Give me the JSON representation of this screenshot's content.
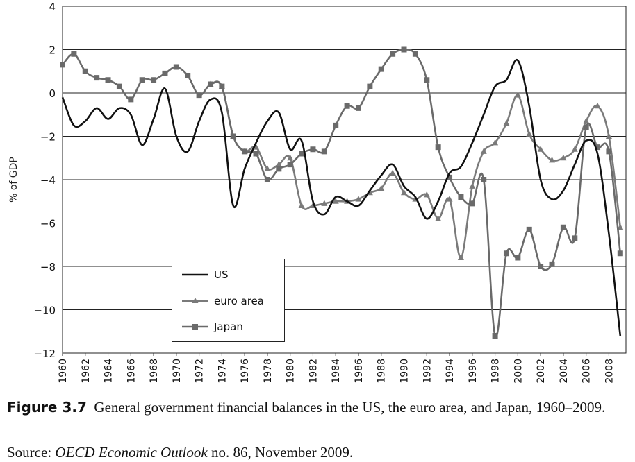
{
  "caption": {
    "figure_label": "Figure 3.7",
    "title": "General government financial balances in the US, the euro area, and Japan, 1960–2009.",
    "source_prefix": "Source: ",
    "source_publication": "OECD Economic Outlook",
    "source_suffix": " no. 86, November 2009."
  },
  "chart_data": {
    "type": "line",
    "ylabel": "% of GDP",
    "xlabel": "",
    "xlim": [
      1960,
      2009.5
    ],
    "ylim": [
      -12,
      4
    ],
    "x_ticks": [
      1960,
      1962,
      1964,
      1966,
      1968,
      1970,
      1972,
      1974,
      1976,
      1978,
      1980,
      1982,
      1984,
      1986,
      1988,
      1990,
      1992,
      1994,
      1996,
      1998,
      2000,
      2002,
      2004,
      2006,
      2008
    ],
    "y_ticks": [
      4,
      2,
      0,
      -2,
      -4,
      -6,
      -8,
      -10,
      -12
    ],
    "y_tick_labels": [
      "4",
      "2",
      "0",
      "−2",
      "−4",
      "−6",
      "−8",
      "−10",
      "−12"
    ],
    "grid": "horizontal",
    "legend_position": "bottom-center",
    "x": [
      1960,
      1961,
      1962,
      1963,
      1964,
      1965,
      1966,
      1967,
      1968,
      1969,
      1970,
      1971,
      1972,
      1973,
      1974,
      1975,
      1976,
      1977,
      1978,
      1979,
      1980,
      1981,
      1982,
      1983,
      1984,
      1985,
      1986,
      1987,
      1988,
      1989,
      1990,
      1991,
      1992,
      1993,
      1994,
      1995,
      1996,
      1997,
      1998,
      1999,
      2000,
      2001,
      2002,
      2003,
      2004,
      2005,
      2006,
      2007,
      2008,
      2009
    ],
    "series": [
      {
        "name": "US",
        "color": "#111111",
        "marker": "none",
        "values": [
          -0.2,
          -1.5,
          -1.3,
          -0.7,
          -1.2,
          -0.7,
          -1.0,
          -2.4,
          -1.2,
          0.2,
          -2.0,
          -2.7,
          -1.3,
          -0.3,
          -0.9,
          -5.2,
          -3.5,
          -2.3,
          -1.3,
          -0.9,
          -2.6,
          -2.2,
          -5.0,
          -5.6,
          -4.8,
          -5.0,
          -5.2,
          -4.5,
          -3.8,
          -3.3,
          -4.3,
          -4.8,
          -5.8,
          -5.0,
          -3.7,
          -3.4,
          -2.3,
          -1.0,
          0.3,
          0.6,
          1.5,
          -0.6,
          -4.0,
          -4.9,
          -4.5,
          -3.3,
          -2.2,
          -2.8,
          -6.5,
          -11.2
        ]
      },
      {
        "name": "euro area",
        "color": "#7a7a7a",
        "marker": "triangle",
        "values": [
          null,
          null,
          null,
          null,
          null,
          null,
          null,
          null,
          null,
          null,
          null,
          null,
          null,
          0.4,
          0.3,
          -2.0,
          -2.7,
          -2.5,
          -3.5,
          -3.3,
          -3.0,
          -5.2,
          -5.2,
          -5.1,
          -5.0,
          -5.0,
          -4.9,
          -4.6,
          -4.4,
          -3.7,
          -4.6,
          -4.9,
          -4.7,
          -5.8,
          -4.9,
          -7.6,
          -4.3,
          -2.7,
          -2.3,
          -1.4,
          -0.1,
          -1.9,
          -2.6,
          -3.1,
          -3.0,
          -2.6,
          -1.3,
          -0.6,
          -2.0,
          -6.2
        ]
      },
      {
        "name": "Japan",
        "color": "#6a6a6a",
        "marker": "square",
        "values": [
          1.3,
          1.8,
          1.0,
          0.7,
          0.6,
          0.3,
          -0.3,
          0.6,
          0.6,
          0.9,
          1.2,
          0.8,
          -0.1,
          0.4,
          0.3,
          -2.0,
          -2.7,
          -2.8,
          -4.0,
          -3.5,
          -3.3,
          -2.8,
          -2.6,
          -2.7,
          -1.5,
          -0.6,
          -0.7,
          0.3,
          1.1,
          1.8,
          2.0,
          1.8,
          0.6,
          -2.5,
          -3.9,
          -4.8,
          -5.1,
          -4.0,
          -11.2,
          -7.4,
          -7.6,
          -6.3,
          -8.0,
          -7.9,
          -6.2,
          -6.7,
          -1.6,
          -2.5,
          -2.7,
          -7.4
        ]
      }
    ]
  }
}
